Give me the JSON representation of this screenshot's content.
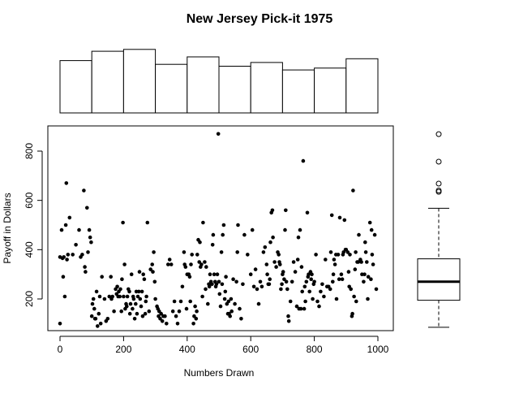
{
  "chart_data": {
    "title": "New Jersey Pick-it 1975",
    "xlabel": "Numbers Drawn",
    "ylabel": "Payoff in Dollars",
    "scatter": {
      "type": "scatter",
      "xlim": [
        0,
        1000
      ],
      "ylim": [
        80,
        880
      ],
      "x_ticks": [
        "0",
        "200",
        "400",
        "600",
        "800",
        "1000"
      ],
      "y_ticks": [
        "200",
        "400",
        "600",
        "800"
      ],
      "points": [
        [
          0,
          100
        ],
        [
          0,
          370
        ],
        [
          5,
          480
        ],
        [
          8,
          365
        ],
        [
          10,
          290
        ],
        [
          12,
          370
        ],
        [
          15,
          210
        ],
        [
          18,
          500
        ],
        [
          20,
          670
        ],
        [
          22,
          360
        ],
        [
          25,
          380
        ],
        [
          30,
          530
        ],
        [
          40,
          380
        ],
        [
          50,
          420
        ],
        [
          60,
          480
        ],
        [
          65,
          370
        ],
        [
          70,
          380
        ],
        [
          75,
          640
        ],
        [
          78,
          330
        ],
        [
          80,
          310
        ],
        [
          85,
          570
        ],
        [
          88,
          390
        ],
        [
          92,
          480
        ],
        [
          95,
          450
        ],
        [
          98,
          430
        ],
        [
          100,
          130
        ],
        [
          102,
          180
        ],
        [
          105,
          200
        ],
        [
          108,
          160
        ],
        [
          110,
          120
        ],
        [
          112,
          120
        ],
        [
          115,
          230
        ],
        [
          118,
          90
        ],
        [
          122,
          140
        ],
        [
          125,
          210
        ],
        [
          128,
          100
        ],
        [
          132,
          290
        ],
        [
          140,
          200
        ],
        [
          145,
          110
        ],
        [
          150,
          120
        ],
        [
          155,
          210
        ],
        [
          160,
          290
        ],
        [
          162,
          200
        ],
        [
          165,
          210
        ],
        [
          170,
          150
        ],
        [
          175,
          240
        ],
        [
          178,
          220
        ],
        [
          180,
          250
        ],
        [
          183,
          210
        ],
        [
          185,
          230
        ],
        [
          188,
          210
        ],
        [
          190,
          240
        ],
        [
          193,
          150
        ],
        [
          195,
          280
        ],
        [
          198,
          510
        ],
        [
          200,
          210
        ],
        [
          203,
          340
        ],
        [
          205,
          160
        ],
        [
          208,
          180
        ],
        [
          210,
          170
        ],
        [
          212,
          210
        ],
        [
          215,
          240
        ],
        [
          218,
          230
        ],
        [
          220,
          140
        ],
        [
          222,
          180
        ],
        [
          225,
          300
        ],
        [
          228,
          160
        ],
        [
          230,
          210
        ],
        [
          232,
          200
        ],
        [
          235,
          120
        ],
        [
          238,
          180
        ],
        [
          240,
          230
        ],
        [
          242,
          140
        ],
        [
          245,
          210
        ],
        [
          248,
          230
        ],
        [
          250,
          310
        ],
        [
          252,
          200
        ],
        [
          255,
          170
        ],
        [
          258,
          230
        ],
        [
          260,
          130
        ],
        [
          262,
          300
        ],
        [
          265,
          280
        ],
        [
          268,
          140
        ],
        [
          270,
          190
        ],
        [
          272,
          210
        ],
        [
          275,
          510
        ],
        [
          280,
          150
        ],
        [
          285,
          320
        ],
        [
          290,
          340
        ],
        [
          292,
          310
        ],
        [
          295,
          390
        ],
        [
          298,
          270
        ],
        [
          300,
          200
        ],
        [
          305,
          170
        ],
        [
          308,
          160
        ],
        [
          310,
          130
        ],
        [
          312,
          150
        ],
        [
          315,
          120
        ],
        [
          318,
          140
        ],
        [
          322,
          110
        ],
        [
          325,
          130
        ],
        [
          330,
          130
        ],
        [
          335,
          100
        ],
        [
          340,
          340
        ],
        [
          345,
          360
        ],
        [
          350,
          340
        ],
        [
          355,
          150
        ],
        [
          360,
          190
        ],
        [
          365,
          130
        ],
        [
          370,
          100
        ],
        [
          375,
          150
        ],
        [
          380,
          190
        ],
        [
          385,
          250
        ],
        [
          390,
          390
        ],
        [
          392,
          340
        ],
        [
          395,
          330
        ],
        [
          398,
          160
        ],
        [
          400,
          300
        ],
        [
          405,
          300
        ],
        [
          408,
          290
        ],
        [
          410,
          190
        ],
        [
          412,
          340
        ],
        [
          415,
          380
        ],
        [
          420,
          100
        ],
        [
          422,
          130
        ],
        [
          425,
          170
        ],
        [
          428,
          120
        ],
        [
          430,
          150
        ],
        [
          432,
          380
        ],
        [
          435,
          440
        ],
        [
          438,
          350
        ],
        [
          440,
          430
        ],
        [
          442,
          330
        ],
        [
          445,
          340
        ],
        [
          448,
          210
        ],
        [
          450,
          510
        ],
        [
          455,
          350
        ],
        [
          458,
          240
        ],
        [
          460,
          330
        ],
        [
          465,
          180
        ],
        [
          468,
          260
        ],
        [
          470,
          250
        ],
        [
          472,
          300
        ],
        [
          475,
          270
        ],
        [
          478,
          260
        ],
        [
          480,
          420
        ],
        [
          482,
          460
        ],
        [
          485,
          300
        ],
        [
          488,
          270
        ],
        [
          490,
          250
        ],
        [
          492,
          260
        ],
        [
          495,
          300
        ],
        [
          498,
          870
        ],
        [
          500,
          270
        ],
        [
          502,
          220
        ],
        [
          505,
          170
        ],
        [
          508,
          390
        ],
        [
          510,
          260
        ],
        [
          512,
          460
        ],
        [
          515,
          500
        ],
        [
          518,
          200
        ],
        [
          520,
          230
        ],
        [
          522,
          290
        ],
        [
          525,
          180
        ],
        [
          528,
          140
        ],
        [
          530,
          190
        ],
        [
          532,
          140
        ],
        [
          535,
          130
        ],
        [
          538,
          200
        ],
        [
          540,
          150
        ],
        [
          545,
          280
        ],
        [
          550,
          180
        ],
        [
          555,
          270
        ],
        [
          558,
          390
        ],
        [
          560,
          500
        ],
        [
          565,
          160
        ],
        [
          570,
          120
        ],
        [
          575,
          260
        ],
        [
          580,
          460
        ],
        [
          590,
          380
        ],
        [
          600,
          300
        ],
        [
          605,
          480
        ],
        [
          610,
          250
        ],
        [
          615,
          320
        ],
        [
          620,
          240
        ],
        [
          625,
          180
        ],
        [
          630,
          270
        ],
        [
          635,
          250
        ],
        [
          640,
          390
        ],
        [
          645,
          410
        ],
        [
          650,
          340
        ],
        [
          652,
          300
        ],
        [
          655,
          260
        ],
        [
          658,
          260
        ],
        [
          660,
          280
        ],
        [
          662,
          430
        ],
        [
          665,
          550
        ],
        [
          668,
          560
        ],
        [
          670,
          450
        ],
        [
          675,
          350
        ],
        [
          680,
          330
        ],
        [
          685,
          390
        ],
        [
          688,
          380
        ],
        [
          690,
          350
        ],
        [
          692,
          340
        ],
        [
          695,
          240
        ],
        [
          698,
          260
        ],
        [
          700,
          300
        ],
        [
          702,
          310
        ],
        [
          705,
          280
        ],
        [
          708,
          480
        ],
        [
          710,
          560
        ],
        [
          712,
          270
        ],
        [
          715,
          240
        ],
        [
          718,
          130
        ],
        [
          720,
          110
        ],
        [
          725,
          190
        ],
        [
          730,
          270
        ],
        [
          735,
          350
        ],
        [
          740,
          310
        ],
        [
          745,
          170
        ],
        [
          748,
          360
        ],
        [
          750,
          450
        ],
        [
          752,
          160
        ],
        [
          755,
          480
        ],
        [
          758,
          160
        ],
        [
          760,
          330
        ],
        [
          762,
          230
        ],
        [
          765,
          760
        ],
        [
          768,
          160
        ],
        [
          770,
          250
        ],
        [
          772,
          190
        ],
        [
          775,
          270
        ],
        [
          778,
          550
        ],
        [
          780,
          290
        ],
        [
          782,
          300
        ],
        [
          785,
          230
        ],
        [
          788,
          310
        ],
        [
          790,
          280
        ],
        [
          792,
          300
        ],
        [
          795,
          200
        ],
        [
          798,
          260
        ],
        [
          800,
          270
        ],
        [
          805,
          380
        ],
        [
          810,
          190
        ],
        [
          815,
          170
        ],
        [
          820,
          230
        ],
        [
          825,
          260
        ],
        [
          830,
          210
        ],
        [
          835,
          360
        ],
        [
          840,
          250
        ],
        [
          845,
          250
        ],
        [
          850,
          240
        ],
        [
          852,
          390
        ],
        [
          855,
          540
        ],
        [
          858,
          270
        ],
        [
          860,
          300
        ],
        [
          862,
          360
        ],
        [
          865,
          340
        ],
        [
          868,
          380
        ],
        [
          870,
          200
        ],
        [
          875,
          380
        ],
        [
          878,
          280
        ],
        [
          880,
          530
        ],
        [
          885,
          300
        ],
        [
          888,
          280
        ],
        [
          890,
          380
        ],
        [
          892,
          390
        ],
        [
          895,
          520
        ],
        [
          898,
          400
        ],
        [
          900,
          400
        ],
        [
          905,
          390
        ],
        [
          908,
          310
        ],
        [
          910,
          250
        ],
        [
          912,
          380
        ],
        [
          915,
          240
        ],
        [
          918,
          130
        ],
        [
          920,
          140
        ],
        [
          922,
          640
        ],
        [
          925,
          210
        ],
        [
          928,
          320
        ],
        [
          930,
          390
        ],
        [
          932,
          190
        ],
        [
          935,
          350
        ],
        [
          938,
          350
        ],
        [
          940,
          460
        ],
        [
          945,
          360
        ],
        [
          948,
          350
        ],
        [
          950,
          300
        ],
        [
          955,
          270
        ],
        [
          958,
          300
        ],
        [
          960,
          430
        ],
        [
          962,
          390
        ],
        [
          965,
          350
        ],
        [
          968,
          200
        ],
        [
          970,
          290
        ],
        [
          975,
          510
        ],
        [
          978,
          280
        ],
        [
          980,
          480
        ],
        [
          982,
          380
        ],
        [
          985,
          340
        ],
        [
          990,
          460
        ],
        [
          995,
          240
        ]
      ]
    },
    "histogram": {
      "type": "bar",
      "breaks": [
        0,
        100,
        200,
        300,
        400,
        500,
        600,
        700,
        800,
        900,
        1000
      ],
      "counts": [
        28,
        33,
        34,
        26,
        30,
        25,
        27,
        23,
        24,
        29
      ]
    },
    "boxplot": {
      "type": "box",
      "min": 85,
      "q1": 195,
      "median": 270,
      "q3": 363,
      "whisker_high": 568,
      "outliers": [
        640,
        635,
        668,
        757,
        869
      ]
    }
  }
}
